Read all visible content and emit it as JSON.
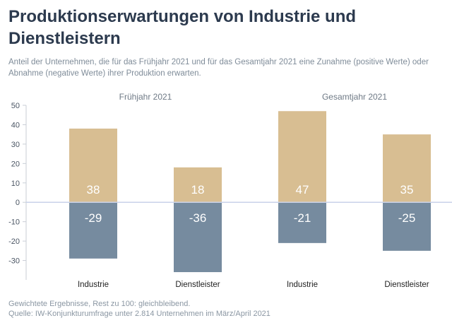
{
  "header": {
    "title": "Produktionserwartungen von Industrie und Dienstleistern",
    "subtitle": "Anteil der Unternehmen, die für das Frühjahr 2021 und für das Gesamtjahr 2021 eine Zunahme (positive Werte) oder Abnahme (negative Werte) ihrer Produktion erwarten."
  },
  "footnotes": [
    "Gewichtete Ergebnisse, Rest zu 100: gleichbleibend.",
    "Quelle: IW-Konjunkturumfrage unter 2.814 Unternehmen im März/April 2021"
  ],
  "chart_data": {
    "type": "bar",
    "title": "Produktionserwartungen von Industrie und Dienstleistern",
    "groups": [
      {
        "label": "Frühjahr 2021",
        "categories": [
          "Industrie",
          "Dienstleister"
        ]
      },
      {
        "label": "Gesamtjahr 2021",
        "categories": [
          "Industrie",
          "Dienstleister"
        ]
      }
    ],
    "categories": [
      "Industrie",
      "Dienstleister",
      "Industrie",
      "Dienstleister"
    ],
    "series": [
      {
        "name": "Zunahme",
        "values": [
          38,
          18,
          47,
          35
        ],
        "color": "#d8be92"
      },
      {
        "name": "Abnahme",
        "values": [
          -29,
          -36,
          -21,
          -25
        ],
        "color": "#768b9f"
      }
    ],
    "ylim": [
      -40,
      50
    ],
    "yticks": [
      50,
      40,
      30,
      20,
      10,
      0,
      -10,
      -20,
      -30
    ],
    "xlabel": "",
    "ylabel": "",
    "colors": {
      "zero_line": "#c9d2ea",
      "tick_text": "#4a5563",
      "category_text": "#222222",
      "value_text": "#ffffff"
    }
  }
}
